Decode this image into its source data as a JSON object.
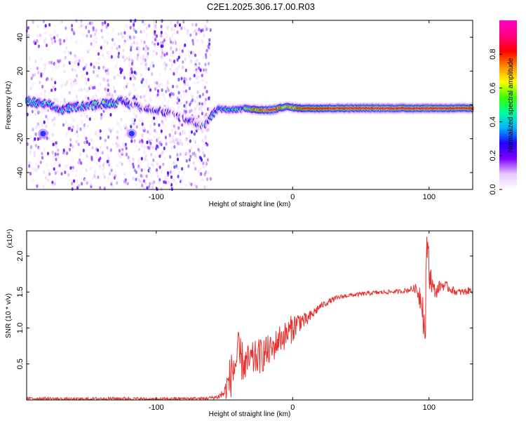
{
  "figure": {
    "title": "C2E1.2025.306.17.00.R03"
  },
  "chart_data": [
    {
      "type": "heatmap",
      "xlabel": "Height of straight line (km)",
      "ylabel": "Frequency (Hz)",
      "xlim": [
        -195,
        132
      ],
      "ylim": [
        -50,
        50
      ],
      "xticks": [
        -100,
        0,
        100
      ],
      "yticks": [
        -40,
        -20,
        0,
        20,
        40
      ],
      "colorbar": {
        "label": "Normalized spectral amplitude",
        "range": [
          0,
          1
        ],
        "ticks": [
          0.0,
          0.2,
          0.4,
          0.6,
          0.8
        ],
        "colormap": [
          "#ffffff",
          "#e6c8ff",
          "#8000ff",
          "#2000ff",
          "#00b4ff",
          "#00ff9c",
          "#3cff00",
          "#ffff00",
          "#ff8c00",
          "#ff0000",
          "#ff0080",
          "#ff00c8"
        ]
      },
      "ridge": [
        {
          "x": -195,
          "freq": 2,
          "amp": 0.4
        },
        {
          "x": -180,
          "freq": 0,
          "amp": 0.3
        },
        {
          "x": -170,
          "freq": -3,
          "amp": 0.3
        },
        {
          "x": -160,
          "freq": -1,
          "amp": 0.3
        },
        {
          "x": -145,
          "freq": 0,
          "amp": 0.35
        },
        {
          "x": -125,
          "freq": 2,
          "amp": 0.35
        },
        {
          "x": -118,
          "freq": 0,
          "amp": 0.2
        },
        {
          "x": -90,
          "freq": -5,
          "amp": 0.1
        },
        {
          "x": -65,
          "freq": -12,
          "amp": 0.15
        },
        {
          "x": -55,
          "freq": -2,
          "amp": 0.4
        },
        {
          "x": -45,
          "freq": -3,
          "amp": 0.35
        },
        {
          "x": -35,
          "freq": -2,
          "amp": 0.45
        },
        {
          "x": -25,
          "freq": -3,
          "amp": 0.7
        },
        {
          "x": -15,
          "freq": -3,
          "amp": 0.85
        },
        {
          "x": -5,
          "freq": -1,
          "amp": 0.6
        },
        {
          "x": 5,
          "freq": -2,
          "amp": 0.8
        },
        {
          "x": 20,
          "freq": -2,
          "amp": 0.85
        },
        {
          "x": 50,
          "freq": -2,
          "amp": 0.88
        },
        {
          "x": 80,
          "freq": -2,
          "amp": 0.88
        },
        {
          "x": 95,
          "freq": -2,
          "amp": 0.88
        },
        {
          "x": 110,
          "freq": -2,
          "amp": 0.88
        },
        {
          "x": 132,
          "freq": -2,
          "amp": 0.85
        }
      ],
      "blobs": [
        {
          "x": -183,
          "freq": -17,
          "amp": 0.3
        },
        {
          "x": -118,
          "freq": -17,
          "amp": 0.3
        }
      ],
      "noise_bands": [
        {
          "x_from": -195,
          "x_to": -120,
          "density": 0.5
        },
        {
          "x_from": -120,
          "x_to": -60,
          "density": 0.75
        }
      ]
    },
    {
      "type": "line",
      "xlabel": "Height of straight line (km)",
      "ylabel": "SNR (10 * v/v)",
      "y_multiplier": "(x10⁴)",
      "xlim": [
        -195,
        132
      ],
      "ylim": [
        0,
        2.35
      ],
      "xticks": [
        -100,
        0,
        100
      ],
      "yticks": [
        0.5,
        1.0,
        1.5,
        2.0
      ],
      "series": [
        {
          "color": "#e8302c",
          "x": [
            -195,
            -180,
            -160,
            -140,
            -120,
            -100,
            -80,
            -65,
            -55,
            -50,
            -46,
            -42,
            -40,
            -35,
            -30,
            -25,
            -20,
            -15,
            -10,
            -5,
            0,
            5,
            10,
            15,
            20,
            25,
            30,
            35,
            40,
            50,
            60,
            70,
            80,
            85,
            90,
            92,
            95,
            97,
            98,
            99,
            100,
            103,
            105,
            108,
            110,
            115,
            120,
            125,
            132
          ],
          "y": [
            0.02,
            0.02,
            0.01,
            0.02,
            0.02,
            0.01,
            0.02,
            0.02,
            0.04,
            0.1,
            0.3,
            0.5,
            0.6,
            0.5,
            0.55,
            0.6,
            0.65,
            0.7,
            0.85,
            0.9,
            1.0,
            1.1,
            1.1,
            1.2,
            1.3,
            1.35,
            1.4,
            1.43,
            1.45,
            1.47,
            1.49,
            1.5,
            1.51,
            1.53,
            1.55,
            1.5,
            1.4,
            0.85,
            1.7,
            2.35,
            1.8,
            1.55,
            1.5,
            1.58,
            1.6,
            1.55,
            1.5,
            1.5,
            1.53
          ],
          "noise_amp": [
            0.02,
            0.02,
            0.02,
            0.02,
            0.02,
            0.02,
            0.02,
            0.02,
            0.03,
            0.1,
            0.3,
            0.35,
            0.35,
            0.25,
            0.25,
            0.25,
            0.25,
            0.2,
            0.2,
            0.2,
            0.2,
            0.15,
            0.1,
            0.08,
            0.05,
            0.04,
            0.04,
            0.03,
            0.03,
            0.03,
            0.03,
            0.03,
            0.03,
            0.04,
            0.06,
            0.15,
            0.25,
            0.35,
            0.4,
            0.3,
            0.25,
            0.1,
            0.1,
            0.08,
            0.08,
            0.06,
            0.05,
            0.05,
            0.05
          ]
        }
      ]
    }
  ]
}
